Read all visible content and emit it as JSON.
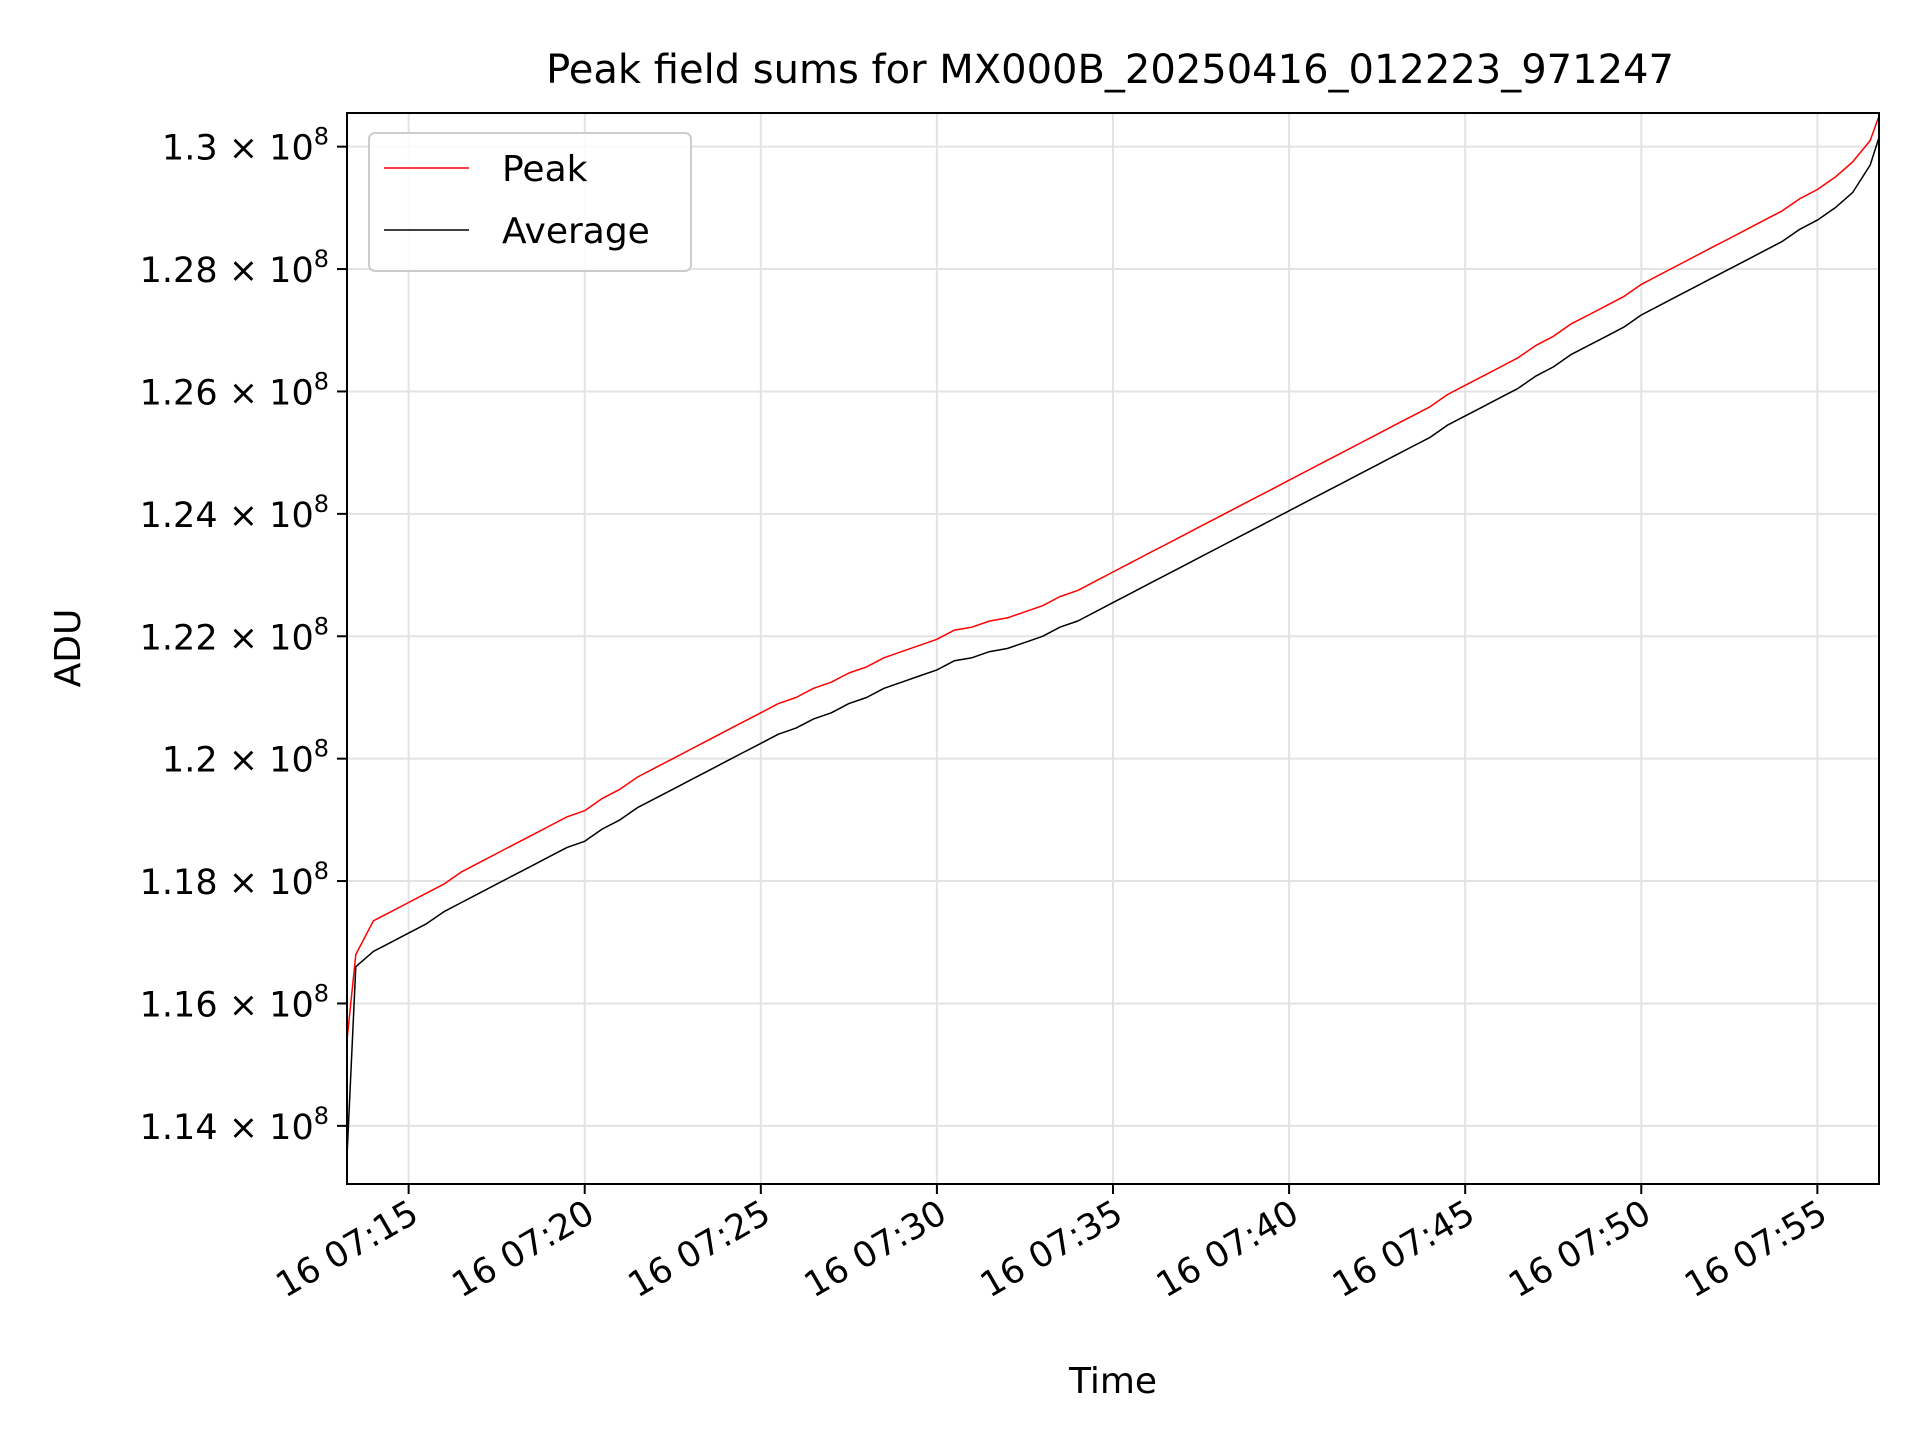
{
  "chart_data": {
    "type": "line",
    "title": "Peak field sums for MX000B_20250416_012223_971247",
    "xlabel": "Time",
    "ylabel": "ADU",
    "x_unit": "minutes past 16 07:00",
    "xlim": [
      13.25,
      56.75
    ],
    "ylim": [
      113050000,
      130550000
    ],
    "x_ticks": [
      {
        "value": 15,
        "label": "16 07:15"
      },
      {
        "value": 20,
        "label": "16 07:20"
      },
      {
        "value": 25,
        "label": "16 07:25"
      },
      {
        "value": 30,
        "label": "16 07:30"
      },
      {
        "value": 35,
        "label": "16 07:35"
      },
      {
        "value": 40,
        "label": "16 07:40"
      },
      {
        "value": 45,
        "label": "16 07:45"
      },
      {
        "value": 50,
        "label": "16 07:50"
      },
      {
        "value": 55,
        "label": "16 07:55"
      }
    ],
    "y_ticks": [
      {
        "value": 114000000,
        "mantissa": "1.14",
        "exp": "8"
      },
      {
        "value": 116000000,
        "mantissa": "1.16",
        "exp": "8"
      },
      {
        "value": 118000000,
        "mantissa": "1.18",
        "exp": "8"
      },
      {
        "value": 120000000,
        "mantissa": "1.2",
        "exp": "8"
      },
      {
        "value": 122000000,
        "mantissa": "1.22",
        "exp": "8"
      },
      {
        "value": 124000000,
        "mantissa": "1.24",
        "exp": "8"
      },
      {
        "value": 126000000,
        "mantissa": "1.26",
        "exp": "8"
      },
      {
        "value": 128000000,
        "mantissa": "1.28",
        "exp": "8"
      },
      {
        "value": 130000000,
        "mantissa": "1.3",
        "exp": "8"
      }
    ],
    "grid": true,
    "legend_position": "top-left",
    "series": [
      {
        "name": "Peak",
        "color": "#ff0000",
        "x": [
          13.25,
          13.5,
          14,
          14.5,
          15,
          15.5,
          16,
          16.5,
          17,
          17.5,
          18,
          18.5,
          19,
          19.5,
          20,
          20.5,
          21,
          21.5,
          22,
          22.5,
          23,
          23.5,
          24,
          24.5,
          25,
          25.5,
          26,
          26.5,
          27,
          27.5,
          28,
          28.5,
          29,
          29.5,
          30,
          30.5,
          31,
          31.5,
          32,
          32.5,
          33,
          33.5,
          34,
          34.5,
          35,
          35.5,
          36,
          36.5,
          37,
          37.5,
          38,
          38.5,
          39,
          39.5,
          40,
          40.5,
          41,
          41.5,
          42,
          42.5,
          43,
          43.5,
          44,
          44.5,
          45,
          45.5,
          46,
          46.5,
          47,
          47.5,
          48,
          48.5,
          49,
          49.5,
          50,
          50.5,
          51,
          51.5,
          52,
          52.5,
          53,
          53.5,
          54,
          54.5,
          55,
          55.5,
          56,
          56.5,
          56.75
        ],
        "values": [
          115400000,
          116800000,
          117350000,
          117500000,
          117650000,
          117800000,
          117950000,
          118150000,
          118300000,
          118450000,
          118600000,
          118750000,
          118900000,
          119050000,
          119150000,
          119350000,
          119500000,
          119700000,
          119850000,
          120000000,
          120150000,
          120300000,
          120450000,
          120600000,
          120750000,
          120900000,
          121000000,
          121150000,
          121250000,
          121400000,
          121500000,
          121650000,
          121750000,
          121850000,
          121950000,
          122100000,
          122150000,
          122250000,
          122300000,
          122400000,
          122500000,
          122650000,
          122750000,
          122900000,
          123050000,
          123200000,
          123350000,
          123500000,
          123650000,
          123800000,
          123950000,
          124100000,
          124250000,
          124400000,
          124550000,
          124700000,
          124850000,
          125000000,
          125150000,
          125300000,
          125450000,
          125600000,
          125750000,
          125950000,
          126100000,
          126250000,
          126400000,
          126550000,
          126750000,
          126900000,
          127100000,
          127250000,
          127400000,
          127550000,
          127750000,
          127900000,
          128050000,
          128200000,
          128350000,
          128500000,
          128650000,
          128800000,
          128950000,
          129150000,
          129300000,
          129500000,
          129750000,
          130100000,
          130500000
        ]
      },
      {
        "name": "Average",
        "color": "#000000",
        "x": [
          13.25,
          13.5,
          14,
          14.5,
          15,
          15.5,
          16,
          16.5,
          17,
          17.5,
          18,
          18.5,
          19,
          19.5,
          20,
          20.5,
          21,
          21.5,
          22,
          22.5,
          23,
          23.5,
          24,
          24.5,
          25,
          25.5,
          26,
          26.5,
          27,
          27.5,
          28,
          28.5,
          29,
          29.5,
          30,
          30.5,
          31,
          31.5,
          32,
          32.5,
          33,
          33.5,
          34,
          34.5,
          35,
          35.5,
          36,
          36.5,
          37,
          37.5,
          38,
          38.5,
          39,
          39.5,
          40,
          40.5,
          41,
          41.5,
          42,
          42.5,
          43,
          43.5,
          44,
          44.5,
          45,
          45.5,
          46,
          46.5,
          47,
          47.5,
          48,
          48.5,
          49,
          49.5,
          50,
          50.5,
          51,
          51.5,
          52,
          52.5,
          53,
          53.5,
          54,
          54.5,
          55,
          55.5,
          56,
          56.5,
          56.75
        ],
        "values": [
          113500000,
          116600000,
          116850000,
          117000000,
          117150000,
          117300000,
          117500000,
          117650000,
          117800000,
          117950000,
          118100000,
          118250000,
          118400000,
          118550000,
          118650000,
          118850000,
          119000000,
          119200000,
          119350000,
          119500000,
          119650000,
          119800000,
          119950000,
          120100000,
          120250000,
          120400000,
          120500000,
          120650000,
          120750000,
          120900000,
          121000000,
          121150000,
          121250000,
          121350000,
          121450000,
          121600000,
          121650000,
          121750000,
          121800000,
          121900000,
          122000000,
          122150000,
          122250000,
          122400000,
          122550000,
          122700000,
          122850000,
          123000000,
          123150000,
          123300000,
          123450000,
          123600000,
          123750000,
          123900000,
          124050000,
          124200000,
          124350000,
          124500000,
          124650000,
          124800000,
          124950000,
          125100000,
          125250000,
          125450000,
          125600000,
          125750000,
          125900000,
          126050000,
          126250000,
          126400000,
          126600000,
          126750000,
          126900000,
          127050000,
          127250000,
          127400000,
          127550000,
          127700000,
          127850000,
          128000000,
          128150000,
          128300000,
          128450000,
          128650000,
          128800000,
          129000000,
          129250000,
          129700000,
          130150000
        ]
      }
    ]
  }
}
